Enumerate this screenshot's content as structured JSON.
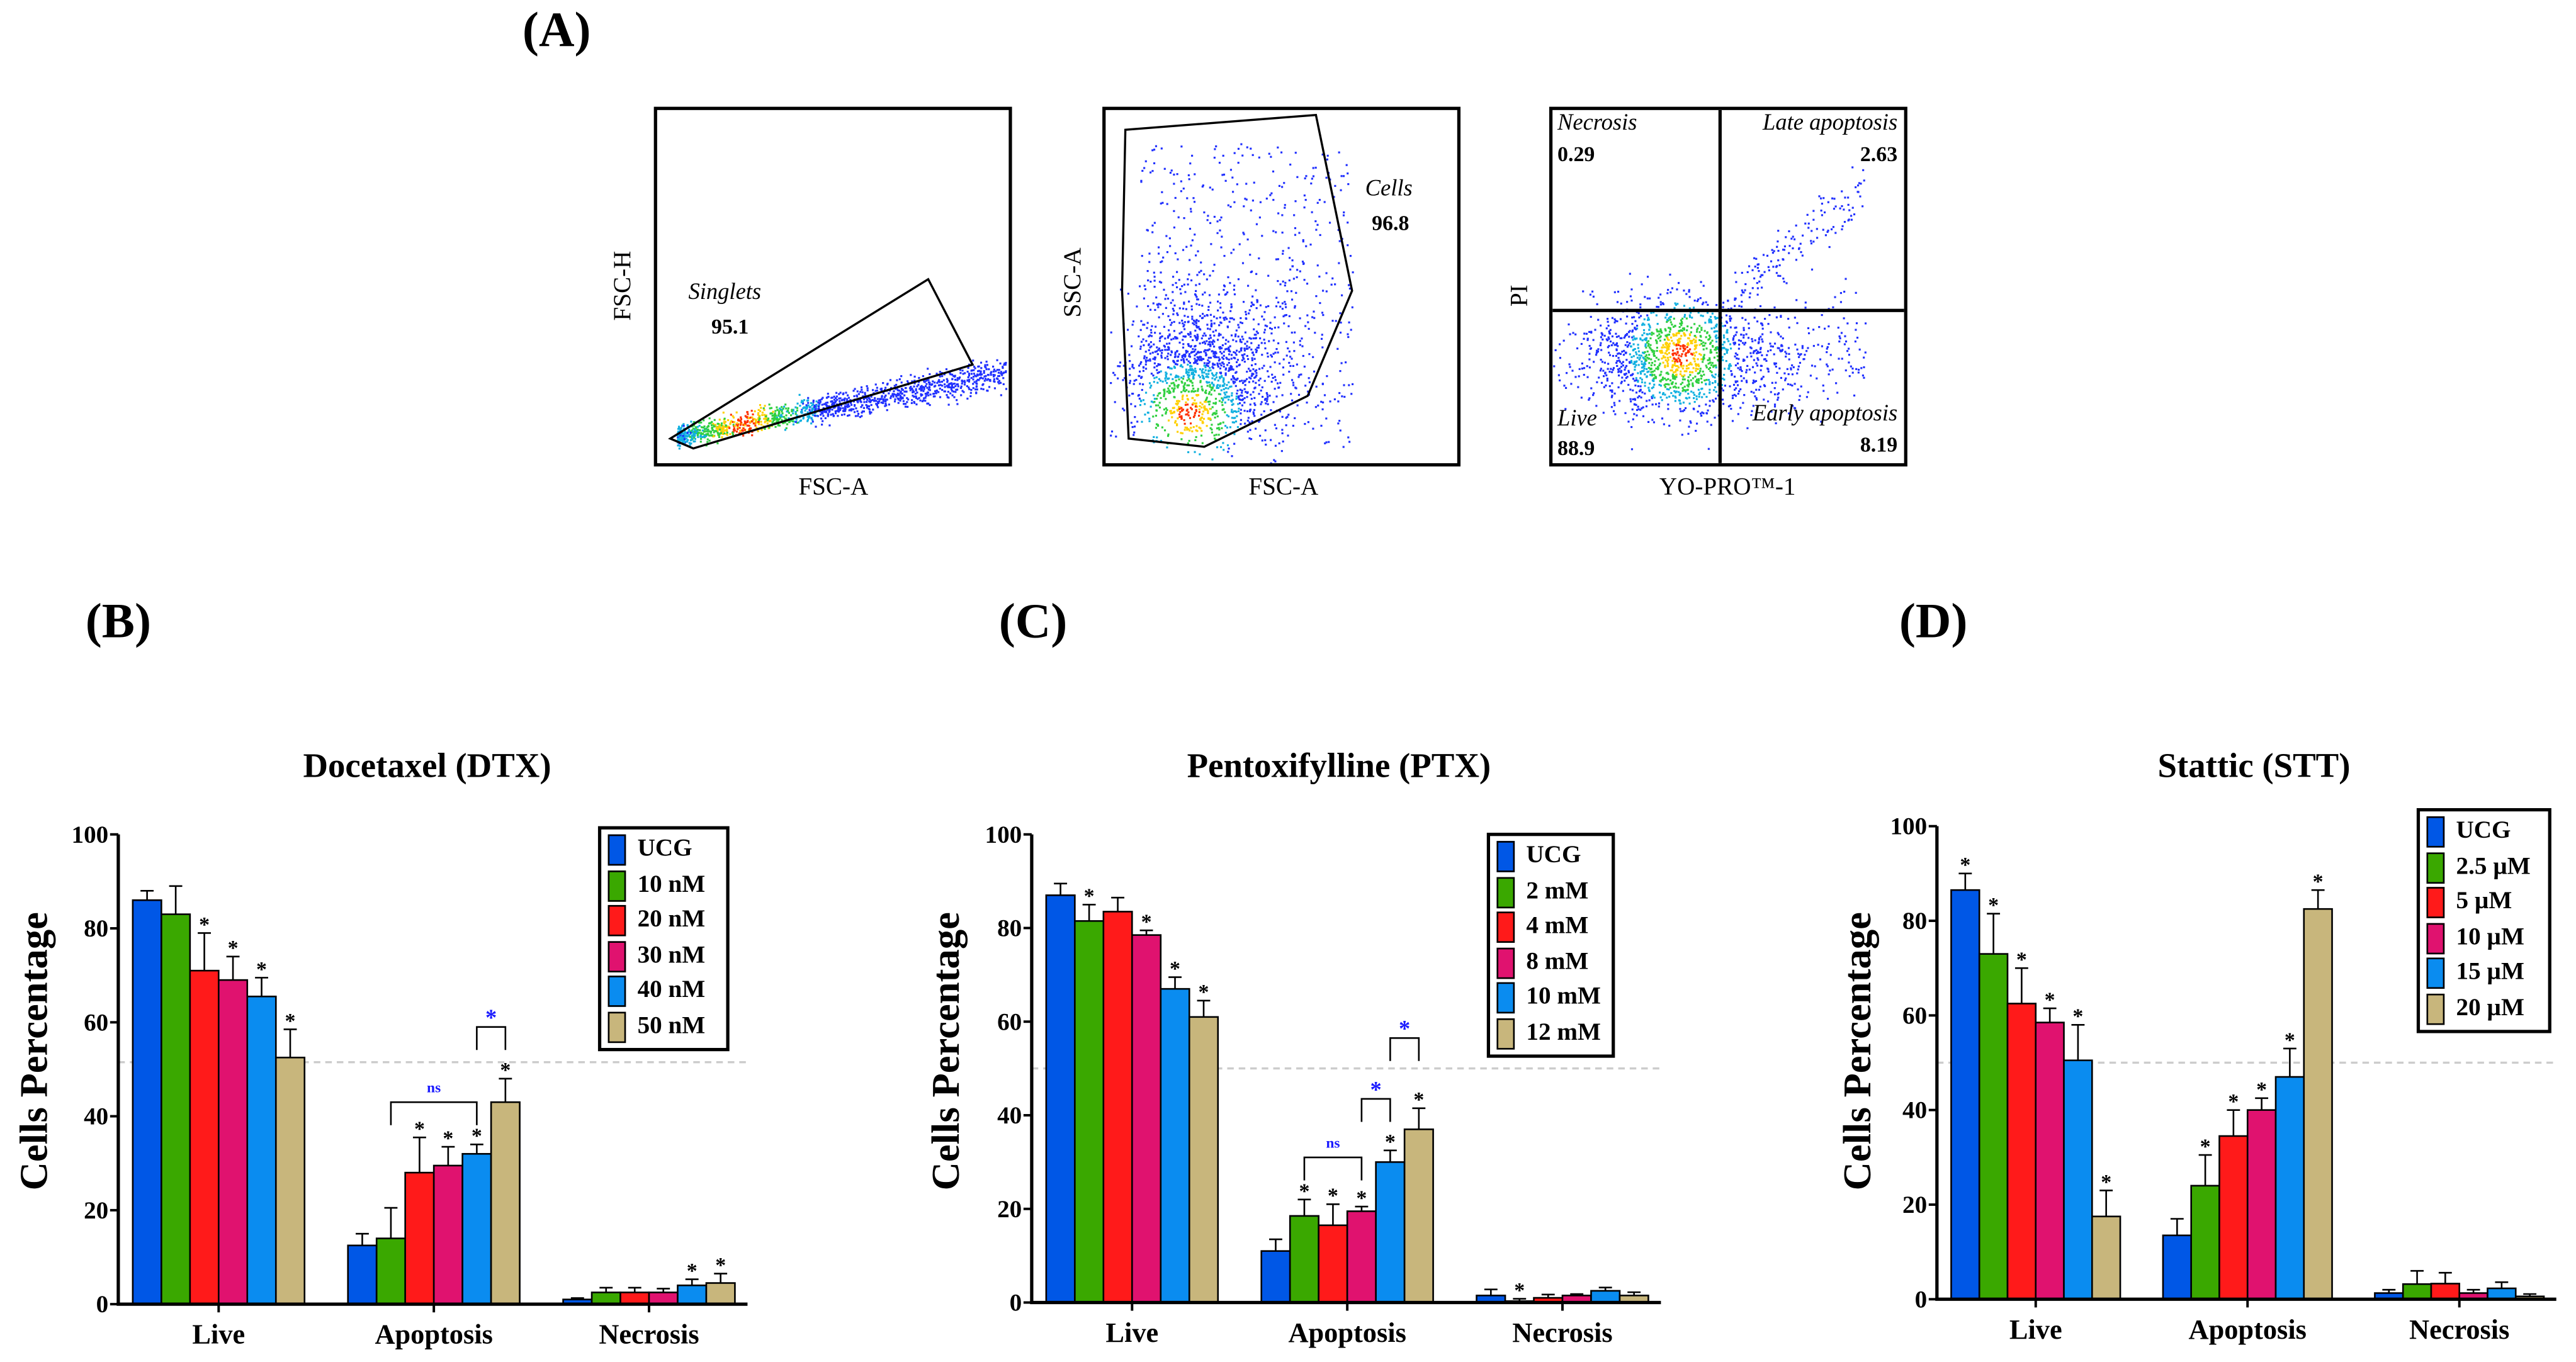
{
  "panel_labels": {
    "a": "(A)",
    "b": "(B)",
    "c": "(C)",
    "d": "(D)"
  },
  "flow": {
    "singlets": {
      "x_label": "FSC-A",
      "y_label": "FSC-H",
      "gate_name": "Singlets",
      "gate_value": "95.1"
    },
    "cells": {
      "x_label": "FSC-A",
      "y_label": "SSC-A",
      "gate_name": "Cells",
      "gate_value": "96.8"
    },
    "quadrants": {
      "x_label": "YO-PRO™-1",
      "y_label": "PI",
      "necrosis": "Necrosis",
      "necrosis_value": "0.29",
      "late": "Late apoptosis",
      "late_value": "2.63",
      "live": "Live",
      "live_value": "88.9",
      "early": "Early apoptosis",
      "early_value": "8.19"
    }
  },
  "colors": [
    "#0057e6",
    "#3aa800",
    "#ff1a1a",
    "#e0126f",
    "#0a8cf0",
    "#c8b67c"
  ],
  "chart_data": [
    {
      "type": "bar",
      "title": "Docetaxel (DTX)",
      "ylabel": "Cells Percentage",
      "xlabel": "",
      "ylim": [
        0,
        100
      ],
      "yticks": [
        "0",
        "20",
        "40",
        "60",
        "80",
        "100"
      ],
      "categories": [
        "Live",
        "Apoptosis",
        "Necrosis"
      ],
      "reference_line": 51.5,
      "series": [
        {
          "name": "UCG",
          "values": [
            86,
            12.5,
            1
          ],
          "errors": [
            2,
            2.5,
            0.3
          ],
          "sig": [
            false,
            false,
            false
          ]
        },
        {
          "name": "10 nM",
          "values": [
            83,
            14,
            2.5
          ],
          "errors": [
            6,
            6.5,
            1
          ],
          "sig": [
            false,
            false,
            false
          ]
        },
        {
          "name": "20 nM",
          "values": [
            71,
            28,
            2.5
          ],
          "errors": [
            8,
            7.5,
            1
          ],
          "sig": [
            true,
            true,
            false
          ]
        },
        {
          "name": "30 nM",
          "values": [
            69,
            29.5,
            2.5
          ],
          "errors": [
            5,
            4,
            0.8
          ],
          "sig": [
            true,
            true,
            false
          ]
        },
        {
          "name": "40 nM",
          "values": [
            65.5,
            32,
            4
          ],
          "errors": [
            4,
            2,
            1.3
          ],
          "sig": [
            true,
            true,
            true
          ]
        },
        {
          "name": "50 nM",
          "values": [
            52.5,
            43,
            4.5
          ],
          "errors": [
            6,
            5,
            2
          ],
          "sig": [
            true,
            true,
            true
          ]
        }
      ],
      "brackets": [
        {
          "category": "Apoptosis",
          "from": "10 nM",
          "to": "40 nM",
          "label": "ns"
        },
        {
          "category": "Apoptosis",
          "from": "40 nM",
          "to": "50 nM",
          "label": "*"
        }
      ]
    },
    {
      "type": "bar",
      "title": "Pentoxifylline (PTX)",
      "ylabel": "Cells Percentage",
      "xlabel": "",
      "ylim": [
        0,
        100
      ],
      "yticks": [
        "0",
        "20",
        "40",
        "60",
        "80",
        "100"
      ],
      "categories": [
        "Live",
        "Apoptosis",
        "Necrosis"
      ],
      "reference_line": 50,
      "series": [
        {
          "name": "UCG",
          "values": [
            87,
            11,
            1.5
          ],
          "errors": [
            2.5,
            2.5,
            1.3
          ],
          "sig": [
            false,
            false,
            false
          ]
        },
        {
          "name": "2 mM",
          "values": [
            81.5,
            18.5,
            0.3
          ],
          "errors": [
            3.5,
            3.5,
            0.5
          ],
          "sig": [
            true,
            true,
            true
          ]
        },
        {
          "name": "4 mM",
          "values": [
            83.5,
            16.5,
            1
          ],
          "errors": [
            3,
            4.5,
            0.7
          ],
          "sig": [
            false,
            true,
            false
          ]
        },
        {
          "name": "8 mM",
          "values": [
            78.5,
            19.5,
            1.5
          ],
          "errors": [
            1,
            1,
            0.3
          ],
          "sig": [
            true,
            true,
            false
          ]
        },
        {
          "name": "10 mM",
          "values": [
            67,
            30,
            2.5
          ],
          "errors": [
            2.5,
            2.5,
            0.7
          ],
          "sig": [
            true,
            true,
            false
          ]
        },
        {
          "name": "12 mM",
          "values": [
            61,
            37,
            1.5
          ],
          "errors": [
            3.5,
            4.5,
            0.7
          ],
          "sig": [
            true,
            true,
            false
          ]
        }
      ],
      "brackets": [
        {
          "category": "Apoptosis",
          "from": "2 mM",
          "to": "8 mM",
          "label": "ns"
        },
        {
          "category": "Apoptosis",
          "from": "8 mM",
          "to": "10 mM",
          "label": "*"
        },
        {
          "category": "Apoptosis",
          "from": "10 mM",
          "to": "12 mM",
          "label": "*"
        }
      ]
    },
    {
      "type": "bar",
      "title": "Stattic (STT)",
      "ylabel": "Cells Percentage",
      "xlabel": "",
      "ylim": [
        0,
        100
      ],
      "yticks": [
        "0",
        "20",
        "40",
        "60",
        "80",
        "100"
      ],
      "categories": [
        "Live",
        "Apoptosis",
        "Necrosis"
      ],
      "reference_line": 50,
      "series": [
        {
          "name": "UCG",
          "values": [
            86.5,
            13.5,
            1.3
          ],
          "errors": [
            3.5,
            3.5,
            0.7
          ],
          "sig": [
            true,
            false,
            false
          ]
        },
        {
          "name": "2.5 µM",
          "values": [
            73,
            24,
            3.2
          ],
          "errors": [
            8.5,
            6.5,
            2.8
          ],
          "sig": [
            true,
            true,
            false
          ]
        },
        {
          "name": "5 µM",
          "values": [
            62.5,
            34.5,
            3.3
          ],
          "errors": [
            7.5,
            5.5,
            2.3
          ],
          "sig": [
            true,
            true,
            false
          ]
        },
        {
          "name": "10 µM",
          "values": [
            58.5,
            40,
            1.3
          ],
          "errors": [
            3,
            2.5,
            0.7
          ],
          "sig": [
            true,
            true,
            false
          ]
        },
        {
          "name": "15 µM",
          "values": [
            50.5,
            47,
            2.3
          ],
          "errors": [
            7.5,
            6,
            1.3
          ],
          "sig": [
            true,
            true,
            false
          ]
        },
        {
          "name": "20 µM",
          "values": [
            17.5,
            82.5,
            0.6
          ],
          "errors": [
            5.5,
            4,
            0.5
          ],
          "sig": [
            true,
            true,
            false
          ]
        }
      ],
      "brackets": []
    }
  ]
}
